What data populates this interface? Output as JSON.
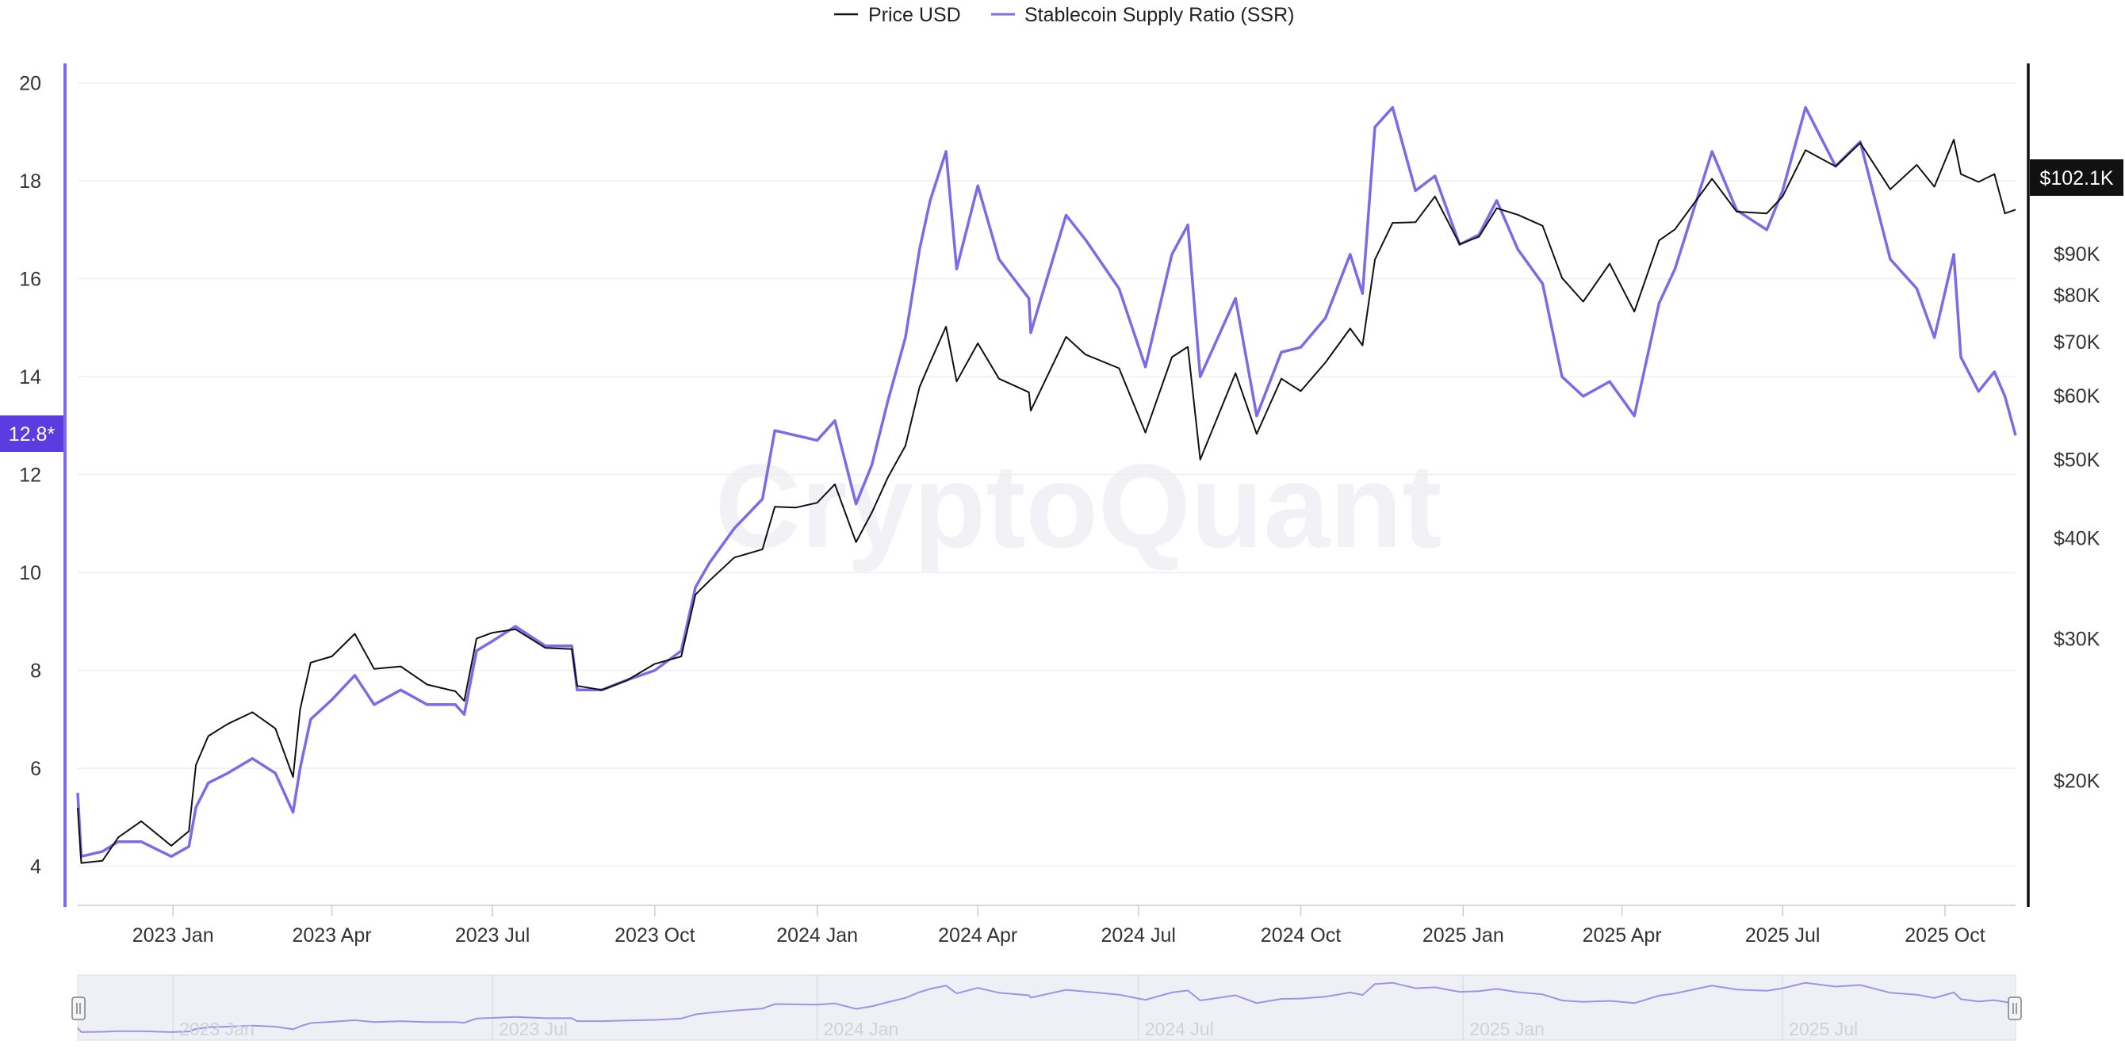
{
  "watermark": "CryptoQuant",
  "colors": {
    "price": "#111111",
    "ssr": "#7b6be6",
    "ssr_badge": "#5b3ce0",
    "price_badge": "#111111",
    "grid": "#efefef",
    "navigator_bg": "#eef0f5"
  },
  "legend": [
    {
      "label": "Price USD",
      "color": "#111111"
    },
    {
      "label": "Stablecoin Supply Ratio (SSR)",
      "color": "#7b6be6"
    }
  ],
  "current_ssr_label": "12.8*",
  "current_price_label": "$102.1K",
  "chart_data": {
    "type": "line",
    "x_range": [
      "2022-11-08",
      "2025-11-10"
    ],
    "x_ticks": [
      {
        "date": "2023-01-01",
        "label": "2023 Jan"
      },
      {
        "date": "2023-04-01",
        "label": "2023 Apr"
      },
      {
        "date": "2023-07-01",
        "label": "2023 Jul"
      },
      {
        "date": "2023-10-01",
        "label": "2023 Oct"
      },
      {
        "date": "2024-01-01",
        "label": "2024 Jan"
      },
      {
        "date": "2024-04-01",
        "label": "2024 Apr"
      },
      {
        "date": "2024-07-01",
        "label": "2024 Jul"
      },
      {
        "date": "2024-10-01",
        "label": "2024 Oct"
      },
      {
        "date": "2025-01-01",
        "label": "2025 Jan"
      },
      {
        "date": "2025-04-01",
        "label": "2025 Apr"
      },
      {
        "date": "2025-07-01",
        "label": "2025 Jul"
      },
      {
        "date": "2025-10-01",
        "label": "2025 Oct"
      }
    ],
    "y_left": {
      "ticks": [
        4,
        6,
        8,
        10,
        12,
        14,
        16,
        18,
        20
      ],
      "range": [
        3.2,
        20.4
      ]
    },
    "y_right": {
      "scale": "log",
      "ticks": [
        {
          "value": 20000,
          "label": "$20K"
        },
        {
          "value": 30000,
          "label": "$30K"
        },
        {
          "value": 40000,
          "label": "$40K"
        },
        {
          "value": 50000,
          "label": "$50K"
        },
        {
          "value": 60000,
          "label": "$60K"
        },
        {
          "value": 70000,
          "label": "$70K"
        },
        {
          "value": 80000,
          "label": "$80K"
        },
        {
          "value": 90000,
          "label": "$90K"
        }
      ],
      "range": [
        14000,
        155000
      ]
    },
    "navigator_labels": [
      {
        "date": "2023-01-01",
        "label": "2023 Jan"
      },
      {
        "date": "2023-07-01",
        "label": "2023 Jul"
      },
      {
        "date": "2024-01-01",
        "label": "2024 Jan"
      },
      {
        "date": "2024-07-01",
        "label": "2024 Jul"
      },
      {
        "date": "2025-01-01",
        "label": "2025 Jan"
      },
      {
        "date": "2025-07-01",
        "label": "2025 Jul"
      }
    ],
    "series": [
      {
        "name": "Price USD",
        "axis": "right",
        "points": [
          [
            "2022-11-08",
            18500
          ],
          [
            "2022-11-10",
            15800
          ],
          [
            "2022-11-22",
            15900
          ],
          [
            "2022-12-01",
            17000
          ],
          [
            "2022-12-14",
            17800
          ],
          [
            "2022-12-31",
            16600
          ],
          [
            "2023-01-10",
            17300
          ],
          [
            "2023-01-14",
            20900
          ],
          [
            "2023-01-21",
            22700
          ],
          [
            "2023-02-01",
            23500
          ],
          [
            "2023-02-15",
            24300
          ],
          [
            "2023-02-28",
            23200
          ],
          [
            "2023-03-10",
            20200
          ],
          [
            "2023-03-14",
            24500
          ],
          [
            "2023-03-20",
            28000
          ],
          [
            "2023-04-01",
            28500
          ],
          [
            "2023-04-14",
            30400
          ],
          [
            "2023-04-25",
            27500
          ],
          [
            "2023-05-10",
            27700
          ],
          [
            "2023-05-25",
            26300
          ],
          [
            "2023-06-10",
            25800
          ],
          [
            "2023-06-15",
            25100
          ],
          [
            "2023-06-22",
            30000
          ],
          [
            "2023-07-01",
            30500
          ],
          [
            "2023-07-14",
            30800
          ],
          [
            "2023-07-31",
            29200
          ],
          [
            "2023-08-15",
            29100
          ],
          [
            "2023-08-18",
            26200
          ],
          [
            "2023-09-01",
            25900
          ],
          [
            "2023-09-15",
            26600
          ],
          [
            "2023-10-01",
            27900
          ],
          [
            "2023-10-16",
            28500
          ],
          [
            "2023-10-24",
            34000
          ],
          [
            "2023-11-01",
            35400
          ],
          [
            "2023-11-15",
            37800
          ],
          [
            "2023-12-01",
            38700
          ],
          [
            "2023-12-08",
            43700
          ],
          [
            "2023-12-20",
            43600
          ],
          [
            "2024-01-01",
            44200
          ],
          [
            "2024-01-11",
            46600
          ],
          [
            "2024-01-23",
            39500
          ],
          [
            "2024-02-01",
            43000
          ],
          [
            "2024-02-10",
            47500
          ],
          [
            "2024-02-20",
            52000
          ],
          [
            "2024-02-28",
            61500
          ],
          [
            "2024-03-05",
            66000
          ],
          [
            "2024-03-14",
            73100
          ],
          [
            "2024-03-20",
            62500
          ],
          [
            "2024-04-01",
            69700
          ],
          [
            "2024-04-13",
            63000
          ],
          [
            "2024-04-30",
            60600
          ],
          [
            "2024-05-01",
            57500
          ],
          [
            "2024-05-21",
            71000
          ],
          [
            "2024-06-01",
            67500
          ],
          [
            "2024-06-20",
            64900
          ],
          [
            "2024-07-05",
            54000
          ],
          [
            "2024-07-20",
            67000
          ],
          [
            "2024-07-29",
            69000
          ],
          [
            "2024-08-05",
            50000
          ],
          [
            "2024-08-25",
            64000
          ],
          [
            "2024-09-06",
            53800
          ],
          [
            "2024-09-20",
            63000
          ],
          [
            "2024-10-01",
            60800
          ],
          [
            "2024-10-15",
            66000
          ],
          [
            "2024-10-29",
            72700
          ],
          [
            "2024-11-05",
            69300
          ],
          [
            "2024-11-12",
            88500
          ],
          [
            "2024-11-22",
            98300
          ],
          [
            "2024-12-05",
            98500
          ],
          [
            "2024-12-16",
            106000
          ],
          [
            "2024-12-30",
            92500
          ],
          [
            "2025-01-10",
            94500
          ],
          [
            "2025-01-20",
            102500
          ],
          [
            "2025-02-01",
            100600
          ],
          [
            "2025-02-15",
            97500
          ],
          [
            "2025-02-26",
            84000
          ],
          [
            "2025-03-10",
            78500
          ],
          [
            "2025-03-25",
            87500
          ],
          [
            "2025-04-08",
            76300
          ],
          [
            "2025-04-22",
            93500
          ],
          [
            "2025-05-01",
            96500
          ],
          [
            "2025-05-22",
            111500
          ],
          [
            "2025-06-05",
            101500
          ],
          [
            "2025-06-22",
            101000
          ],
          [
            "2025-07-01",
            106000
          ],
          [
            "2025-07-14",
            121000
          ],
          [
            "2025-07-31",
            115500
          ],
          [
            "2025-08-14",
            123500
          ],
          [
            "2025-08-31",
            108200
          ],
          [
            "2025-09-15",
            116000
          ],
          [
            "2025-09-25",
            109000
          ],
          [
            "2025-10-06",
            124700
          ],
          [
            "2025-10-10",
            113000
          ],
          [
            "2025-10-20",
            110500
          ],
          [
            "2025-10-29",
            113000
          ],
          [
            "2025-11-04",
            101000
          ],
          [
            "2025-11-10",
            102100
          ]
        ]
      },
      {
        "name": "Stablecoin Supply Ratio (SSR)",
        "axis": "left",
        "points": [
          [
            "2022-11-08",
            5.5
          ],
          [
            "2022-11-10",
            4.2
          ],
          [
            "2022-11-22",
            4.3
          ],
          [
            "2022-12-01",
            4.5
          ],
          [
            "2022-12-14",
            4.5
          ],
          [
            "2022-12-31",
            4.2
          ],
          [
            "2023-01-10",
            4.4
          ],
          [
            "2023-01-14",
            5.2
          ],
          [
            "2023-01-21",
            5.7
          ],
          [
            "2023-02-01",
            5.9
          ],
          [
            "2023-02-15",
            6.2
          ],
          [
            "2023-02-28",
            5.9
          ],
          [
            "2023-03-10",
            5.1
          ],
          [
            "2023-03-14",
            6.0
          ],
          [
            "2023-03-20",
            7.0
          ],
          [
            "2023-04-01",
            7.4
          ],
          [
            "2023-04-14",
            7.9
          ],
          [
            "2023-04-25",
            7.3
          ],
          [
            "2023-05-10",
            7.6
          ],
          [
            "2023-05-25",
            7.3
          ],
          [
            "2023-06-10",
            7.3
          ],
          [
            "2023-06-15",
            7.1
          ],
          [
            "2023-06-22",
            8.4
          ],
          [
            "2023-07-01",
            8.6
          ],
          [
            "2023-07-14",
            8.9
          ],
          [
            "2023-07-31",
            8.5
          ],
          [
            "2023-08-15",
            8.5
          ],
          [
            "2023-08-18",
            7.6
          ],
          [
            "2023-09-01",
            7.6
          ],
          [
            "2023-09-15",
            7.8
          ],
          [
            "2023-10-01",
            8.0
          ],
          [
            "2023-10-16",
            8.4
          ],
          [
            "2023-10-24",
            9.7
          ],
          [
            "2023-11-01",
            10.2
          ],
          [
            "2023-11-15",
            10.9
          ],
          [
            "2023-12-01",
            11.5
          ],
          [
            "2023-12-08",
            12.9
          ],
          [
            "2023-12-20",
            12.8
          ],
          [
            "2024-01-01",
            12.7
          ],
          [
            "2024-01-11",
            13.1
          ],
          [
            "2024-01-23",
            11.4
          ],
          [
            "2024-02-01",
            12.2
          ],
          [
            "2024-02-10",
            13.5
          ],
          [
            "2024-02-20",
            14.8
          ],
          [
            "2024-02-28",
            16.6
          ],
          [
            "2024-03-05",
            17.6
          ],
          [
            "2024-03-14",
            18.6
          ],
          [
            "2024-03-20",
            16.2
          ],
          [
            "2024-04-01",
            17.9
          ],
          [
            "2024-04-13",
            16.4
          ],
          [
            "2024-04-30",
            15.6
          ],
          [
            "2024-05-01",
            14.9
          ],
          [
            "2024-05-21",
            17.3
          ],
          [
            "2024-06-01",
            16.8
          ],
          [
            "2024-06-20",
            15.8
          ],
          [
            "2024-07-05",
            14.2
          ],
          [
            "2024-07-20",
            16.5
          ],
          [
            "2024-07-29",
            17.1
          ],
          [
            "2024-08-05",
            14.0
          ],
          [
            "2024-08-25",
            15.6
          ],
          [
            "2024-09-06",
            13.2
          ],
          [
            "2024-09-20",
            14.5
          ],
          [
            "2024-10-01",
            14.6
          ],
          [
            "2024-10-15",
            15.2
          ],
          [
            "2024-10-29",
            16.5
          ],
          [
            "2024-11-05",
            15.7
          ],
          [
            "2024-11-12",
            19.1
          ],
          [
            "2024-11-22",
            19.5
          ],
          [
            "2024-12-05",
            17.8
          ],
          [
            "2024-12-16",
            18.1
          ],
          [
            "2024-12-30",
            16.7
          ],
          [
            "2025-01-10",
            16.9
          ],
          [
            "2025-01-20",
            17.6
          ],
          [
            "2025-02-01",
            16.6
          ],
          [
            "2025-02-15",
            15.9
          ],
          [
            "2025-02-26",
            14.0
          ],
          [
            "2025-03-10",
            13.6
          ],
          [
            "2025-03-25",
            13.9
          ],
          [
            "2025-04-08",
            13.2
          ],
          [
            "2025-04-22",
            15.5
          ],
          [
            "2025-05-01",
            16.2
          ],
          [
            "2025-05-22",
            18.6
          ],
          [
            "2025-06-05",
            17.4
          ],
          [
            "2025-06-22",
            17.0
          ],
          [
            "2025-07-01",
            17.8
          ],
          [
            "2025-07-14",
            19.5
          ],
          [
            "2025-07-31",
            18.3
          ],
          [
            "2025-08-14",
            18.8
          ],
          [
            "2025-08-31",
            16.4
          ],
          [
            "2025-09-15",
            15.8
          ],
          [
            "2025-09-25",
            14.8
          ],
          [
            "2025-10-06",
            16.5
          ],
          [
            "2025-10-10",
            14.4
          ],
          [
            "2025-10-20",
            13.7
          ],
          [
            "2025-10-29",
            14.1
          ],
          [
            "2025-11-04",
            13.6
          ],
          [
            "2025-11-10",
            12.8
          ]
        ]
      }
    ]
  }
}
